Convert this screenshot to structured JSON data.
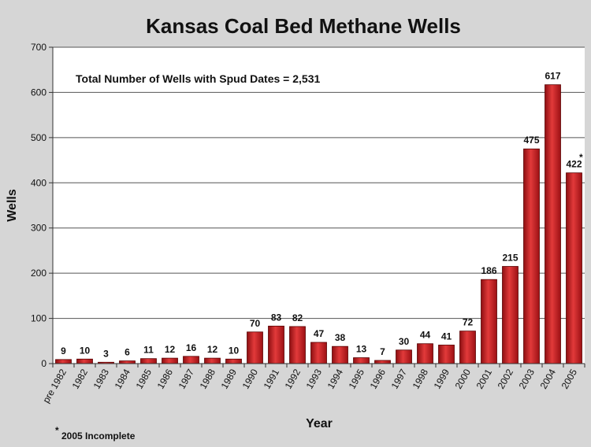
{
  "chart_data": {
    "type": "bar",
    "title": "Kansas Coal Bed Methane Wells",
    "xlabel": "Year",
    "ylabel": "Wells",
    "ylim": [
      0,
      700
    ],
    "yticks": [
      0,
      100,
      200,
      300,
      400,
      500,
      600,
      700
    ],
    "grid": true,
    "categories": [
      "pre 1982",
      "1982",
      "1983",
      "1984",
      "1985",
      "1986",
      "1987",
      "1988",
      "1989",
      "1990",
      "1991",
      "1992",
      "1993",
      "1994",
      "1995",
      "1996",
      "1997",
      "1998",
      "1999",
      "2000",
      "2001",
      "2002",
      "2003",
      "2004",
      "2005"
    ],
    "values": [
      9,
      10,
      3,
      6,
      11,
      12,
      16,
      12,
      10,
      70,
      83,
      82,
      47,
      38,
      13,
      7,
      30,
      44,
      41,
      72,
      186,
      215,
      475,
      617,
      422
    ],
    "data_labels": [
      "9",
      "10",
      "3",
      "6",
      "11",
      "12",
      "16",
      "12",
      "10",
      "70",
      "83",
      "82",
      "47",
      "38",
      "13",
      "7",
      "30",
      "44",
      "41",
      "72",
      "186",
      "215",
      "475",
      "617",
      "422"
    ],
    "annotation": "Total Number of Wells with Spud Dates = 2,531",
    "footnote_marker": "*",
    "footnote": "2005 Incomplete",
    "bar_color": "#c0181c",
    "bar_edge_color": "#5a0000"
  }
}
